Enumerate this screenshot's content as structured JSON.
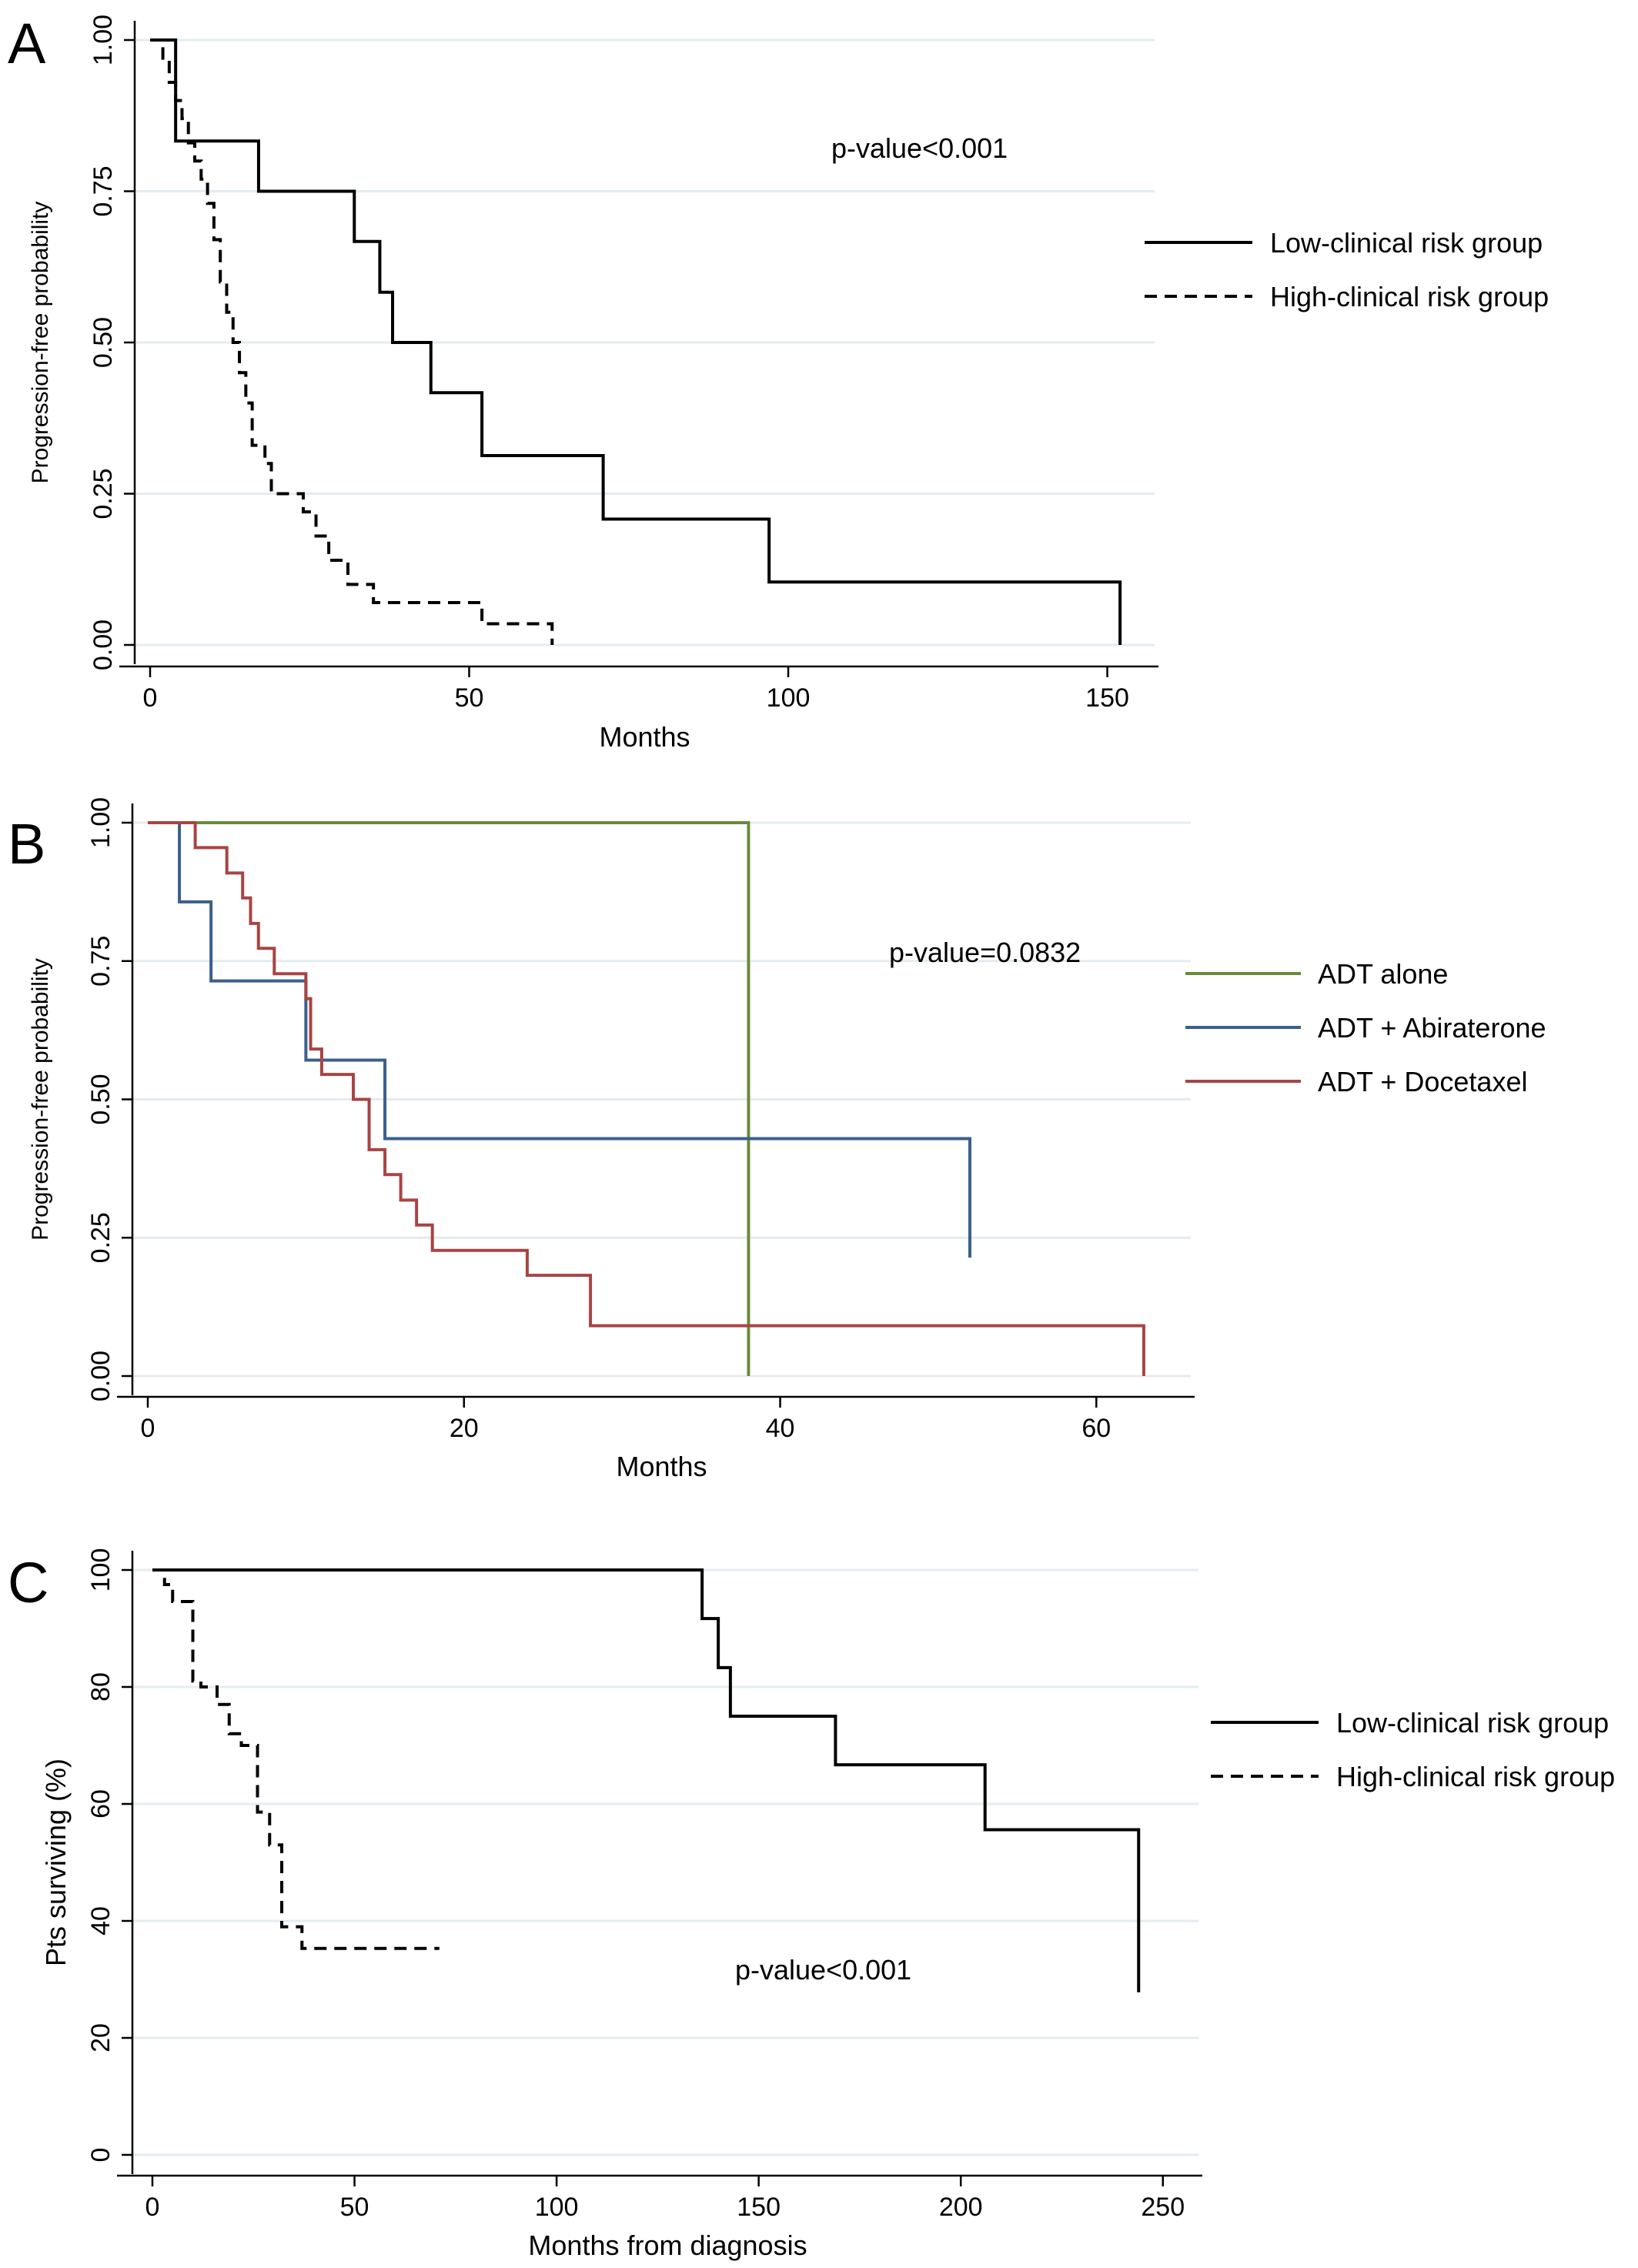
{
  "figure": {
    "panels": [
      {
        "letter": "A"
      },
      {
        "letter": "B"
      },
      {
        "letter": "C"
      }
    ]
  },
  "chart_data": [
    {
      "type": "line",
      "step": true,
      "panel": "A",
      "xlabel": "Months",
      "ylabel": "Progression-free probability",
      "xlim": [
        0,
        155
      ],
      "ylim": [
        0,
        1
      ],
      "xticks": [
        0,
        50,
        100,
        150
      ],
      "yticks": [
        0,
        0.25,
        0.5,
        0.75,
        1
      ],
      "ytick_labels": [
        "0.00",
        "0.25",
        "0.50",
        "0.75",
        "1.00"
      ],
      "grid": true,
      "legend_position": "right",
      "annotation": "p-value<0.001",
      "series": [
        {
          "name": "Low-clinical risk group",
          "color": "#000000",
          "style": "solid",
          "x": [
            0,
            4,
            17,
            32,
            36,
            38,
            44,
            52,
            71,
            97,
            152,
            152
          ],
          "y": [
            1.0,
            0.833,
            0.75,
            0.667,
            0.583,
            0.5,
            0.417,
            0.313,
            0.208,
            0.104,
            0.104,
            0.0
          ]
        },
        {
          "name": "High-clinical risk group",
          "color": "#000000",
          "style": "dashed",
          "x": [
            0,
            2,
            3,
            4,
            5,
            6,
            7,
            8,
            9,
            10,
            11,
            12,
            13,
            14,
            15,
            16,
            18,
            19,
            20,
            24,
            26,
            28,
            31,
            35,
            42,
            52,
            63,
            63
          ],
          "y": [
            1.0,
            0.97,
            0.93,
            0.9,
            0.87,
            0.83,
            0.8,
            0.77,
            0.73,
            0.67,
            0.6,
            0.55,
            0.5,
            0.45,
            0.4,
            0.33,
            0.3,
            0.25,
            0.25,
            0.22,
            0.18,
            0.14,
            0.1,
            0.07,
            0.07,
            0.035,
            0.035,
            0.0
          ]
        }
      ]
    },
    {
      "type": "line",
      "step": true,
      "panel": "B",
      "xlabel": "Months",
      "ylabel": "Progression-free probability",
      "xlim": [
        0,
        65
      ],
      "ylim": [
        0,
        1
      ],
      "xticks": [
        0,
        20,
        40,
        60
      ],
      "yticks": [
        0,
        0.25,
        0.5,
        0.75,
        1
      ],
      "ytick_labels": [
        "0.00",
        "0.25",
        "0.50",
        "0.75",
        "1.00"
      ],
      "grid": true,
      "legend_position": "right",
      "annotation": "p-value=0.0832",
      "series": [
        {
          "name": "ADT alone",
          "color": "#6a8a3a",
          "style": "solid",
          "x": [
            0,
            38,
            38
          ],
          "y": [
            1.0,
            1.0,
            0.0
          ]
        },
        {
          "name": "ADT + Abiraterone",
          "color": "#3c5f8c",
          "style": "solid",
          "x": [
            0,
            2,
            4,
            10,
            15,
            52,
            52
          ],
          "y": [
            1.0,
            0.857,
            0.714,
            0.571,
            0.429,
            0.429,
            0.214
          ]
        },
        {
          "name": "ADT + Docetaxel",
          "color": "#a84444",
          "style": "solid",
          "x": [
            0,
            3,
            5,
            6,
            6.5,
            7,
            8,
            10,
            10.3,
            11,
            13,
            14,
            15,
            16,
            17,
            18,
            19,
            24,
            28,
            63,
            63
          ],
          "y": [
            1.0,
            0.955,
            0.909,
            0.864,
            0.818,
            0.773,
            0.727,
            0.682,
            0.591,
            0.545,
            0.5,
            0.409,
            0.364,
            0.318,
            0.273,
            0.227,
            0.227,
            0.182,
            0.091,
            0.091,
            0.0
          ]
        }
      ]
    },
    {
      "type": "line",
      "step": true,
      "panel": "C",
      "xlabel": "Months from diagnosis",
      "ylabel": "Pts surviving (%)",
      "xlim": [
        0,
        255
      ],
      "ylim": [
        0,
        100
      ],
      "xticks": [
        0,
        50,
        100,
        150,
        200,
        250
      ],
      "yticks": [
        0,
        20,
        40,
        60,
        80,
        100
      ],
      "ytick_labels": [
        "0",
        "20",
        "40",
        "60",
        "80",
        "100"
      ],
      "grid": true,
      "legend_position": "right",
      "annotation": "p-value<0.001",
      "series": [
        {
          "name": "Low-clinical risk group",
          "color": "#000000",
          "style": "solid",
          "x": [
            0,
            136,
            140,
            143,
            169,
            206,
            244,
            244
          ],
          "y": [
            100,
            91.7,
            83.3,
            75.0,
            66.7,
            55.6,
            55.6,
            27.8
          ]
        },
        {
          "name": "High-clinical risk group",
          "color": "#000000",
          "style": "dashed",
          "x": [
            0,
            3,
            5,
            10,
            12,
            16,
            19,
            22,
            26,
            29,
            32,
            35,
            37,
            71
          ],
          "y": [
            100,
            97.5,
            94.6,
            81.0,
            80.0,
            77.0,
            72.0,
            70.0,
            58.6,
            53.0,
            39.0,
            39.0,
            35.3,
            35.3
          ]
        }
      ]
    }
  ]
}
